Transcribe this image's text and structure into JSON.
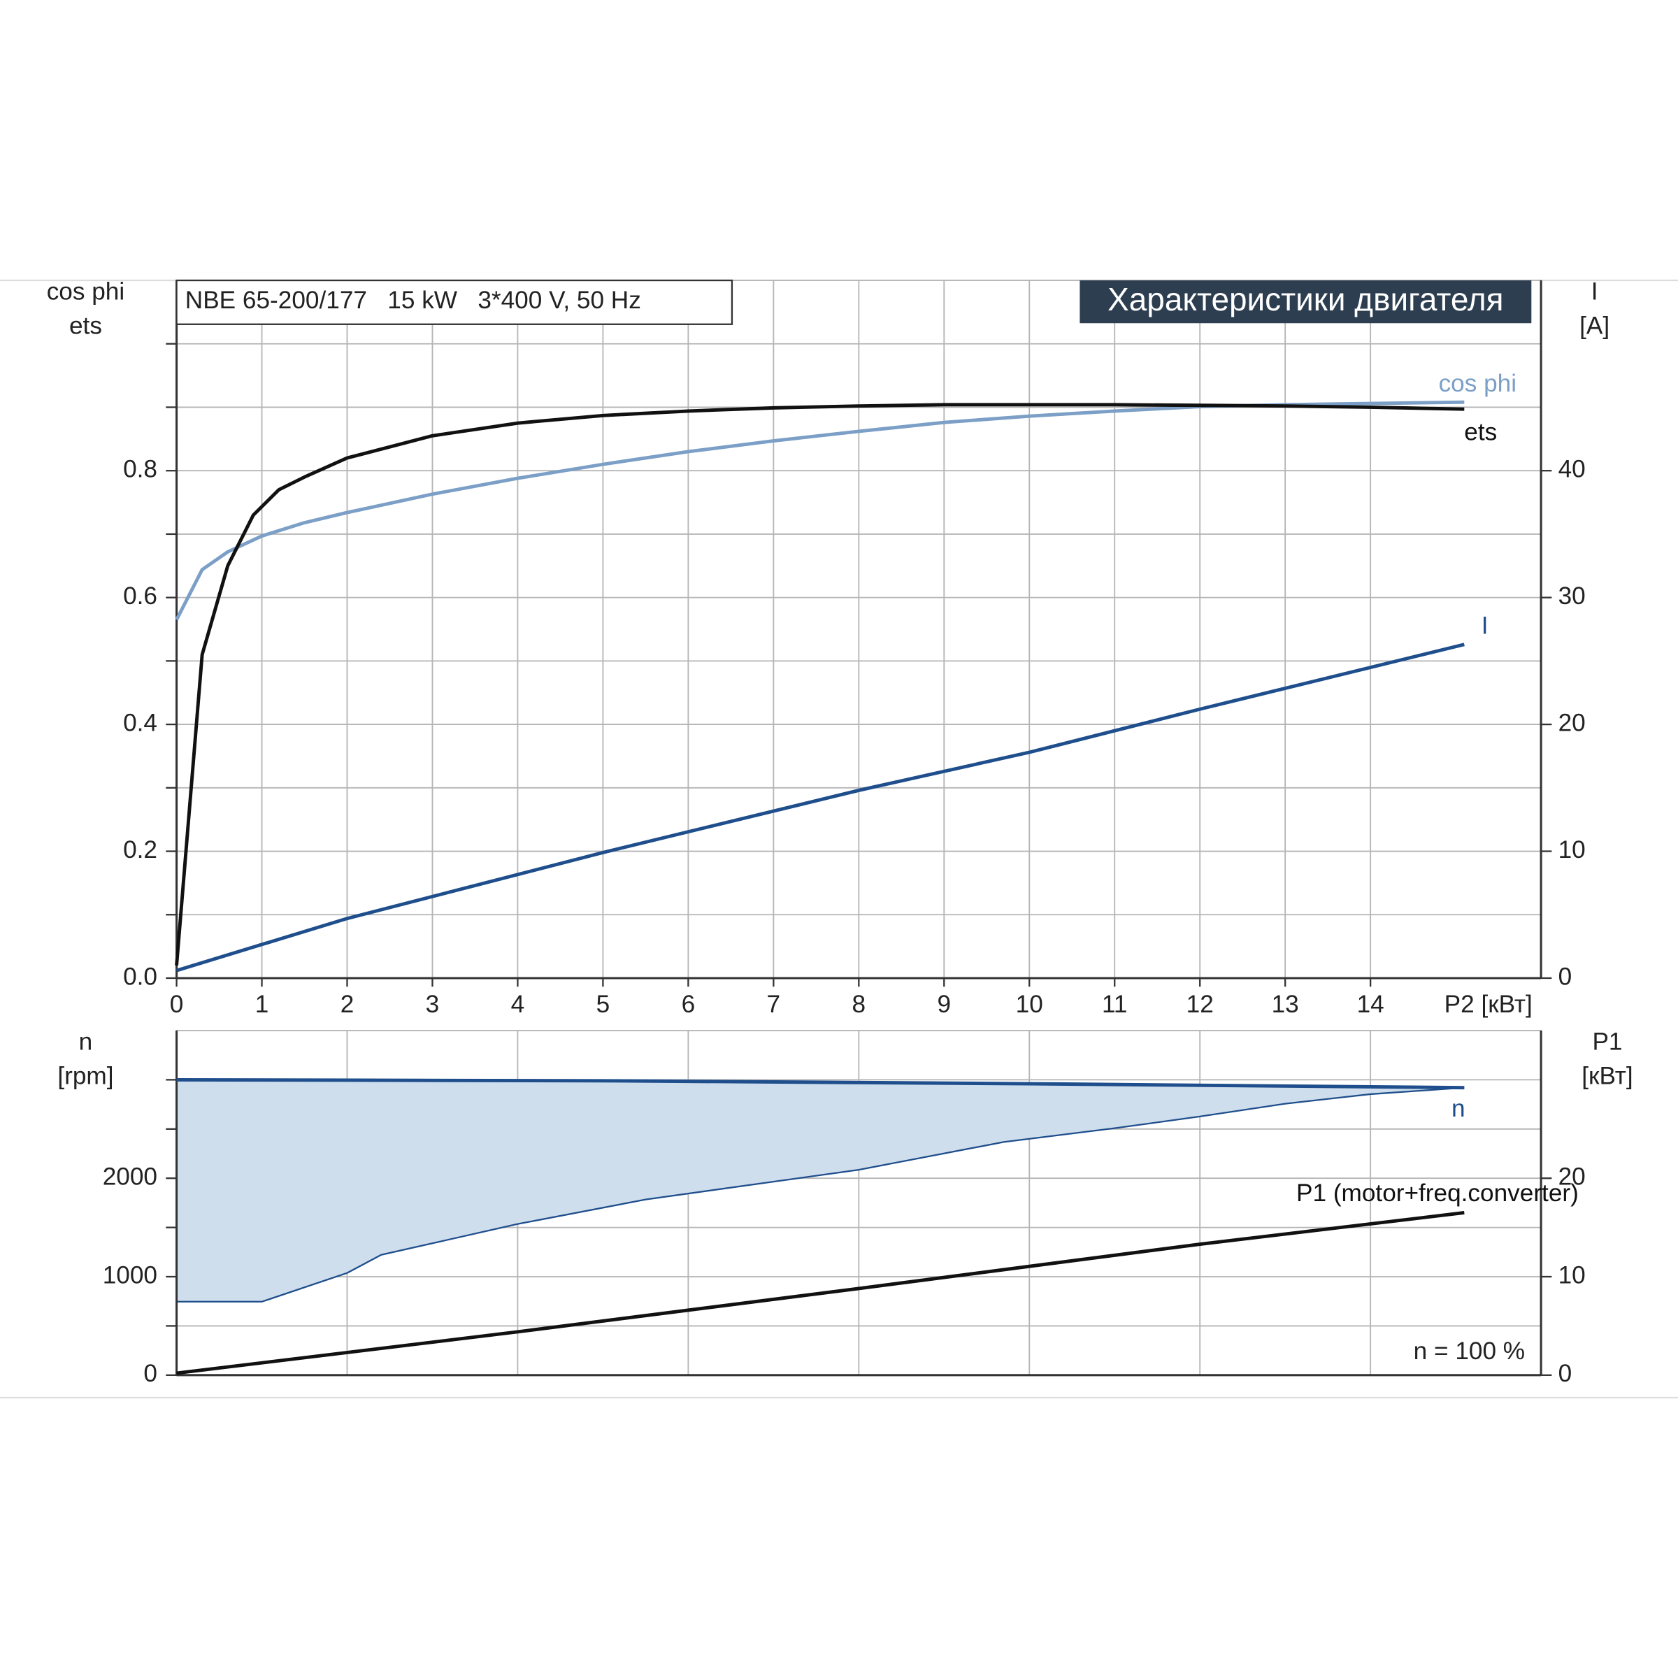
{
  "chart_data": [
    {
      "type": "line",
      "header": "NBE 65-200/177   15 kW   3*400 V, 50 Hz",
      "title": "Характеристики двигателя",
      "ylabel": [
        "cos phi",
        "ets"
      ],
      "y2label": [
        "I",
        "[A]"
      ],
      "xlabel": "P2 [кВт]",
      "xlim": [
        0,
        16
      ],
      "xticks": [
        0,
        1,
        2,
        3,
        4,
        5,
        6,
        7,
        8,
        9,
        10,
        11,
        12,
        13,
        14
      ],
      "ylim": [
        0,
        1.1
      ],
      "yticks": [
        {
          "value": 0,
          "label": "0.0"
        },
        0.2,
        0.4,
        0.6,
        0.8
      ],
      "ygrid": [
        0.1,
        0.3,
        0.5,
        0.7,
        0.9,
        1.0
      ],
      "y2lim": [
        0,
        55
      ],
      "y2ticks": [
        0,
        10,
        20,
        30,
        40
      ],
      "series": [
        {
          "name": "cos phi",
          "color": "#7b9fc6",
          "x": [
            0,
            0.3,
            0.6,
            1,
            1.5,
            2,
            3,
            4,
            5,
            6,
            7,
            8,
            9,
            10,
            11,
            12,
            13,
            14,
            15.1
          ],
          "values": [
            0.565,
            0.644,
            0.672,
            0.697,
            0.718,
            0.734,
            0.763,
            0.788,
            0.81,
            0.83,
            0.847,
            0.862,
            0.876,
            0.886,
            0.894,
            0.901,
            0.904,
            0.906,
            0.908
          ]
        },
        {
          "name": "ets",
          "color": "#111111",
          "x": [
            0,
            0.3,
            0.6,
            0.9,
            1.2,
            1.5,
            2,
            3,
            4,
            5,
            6,
            7,
            8,
            9,
            10,
            11,
            12,
            13,
            14,
            15.1
          ],
          "values": [
            0.02,
            0.51,
            0.65,
            0.73,
            0.77,
            0.79,
            0.82,
            0.855,
            0.875,
            0.887,
            0.894,
            0.899,
            0.902,
            0.904,
            0.904,
            0.904,
            0.903,
            0.902,
            0.9,
            0.897
          ]
        },
        {
          "name": "I",
          "color": "#1f4e8c",
          "axis": "y2",
          "x": [
            0,
            2,
            5,
            8,
            10,
            12,
            15.1
          ],
          "values": [
            0.6,
            4.7,
            9.9,
            14.8,
            17.8,
            21.2,
            26.3
          ]
        }
      ]
    },
    {
      "type": "line",
      "ylabel": [
        "n",
        "[rpm]"
      ],
      "y2label": [
        "P1",
        "[кВт]"
      ],
      "xlim": [
        0,
        16
      ],
      "xgrid": [
        2,
        4,
        6,
        8,
        10,
        12,
        14
      ],
      "ylim": [
        0,
        3500
      ],
      "yticks": [
        0,
        1000,
        2000
      ],
      "ygrid": [
        500,
        1500,
        2500,
        3000
      ],
      "y2lim": [
        0,
        35
      ],
      "y2ticks": [
        0,
        10,
        20
      ],
      "annotation": "n = 100 %",
      "band": {
        "color": "#cfdeed",
        "x": [
          0,
          1,
          2,
          2.4,
          4,
          5.5,
          8,
          9.7,
          11,
          12,
          13,
          14,
          15.1
        ],
        "values": [
          746,
          746,
          1038,
          1222,
          1535,
          1784,
          2086,
          2368,
          2508,
          2627,
          2757,
          2854,
          2920
        ]
      },
      "series": [
        {
          "name": "n",
          "color": "#1f4e8c",
          "x": [
            0,
            5,
            10,
            15.1
          ],
          "values": [
            3000,
            2990,
            2960,
            2920
          ]
        },
        {
          "name": "P1 (motor+freq.converter)",
          "color": "#111111",
          "axis": "y2",
          "x": [
            0,
            4,
            8,
            12,
            15.1
          ],
          "values": [
            0.2,
            4.4,
            8.8,
            13.3,
            16.5
          ]
        }
      ]
    }
  ]
}
